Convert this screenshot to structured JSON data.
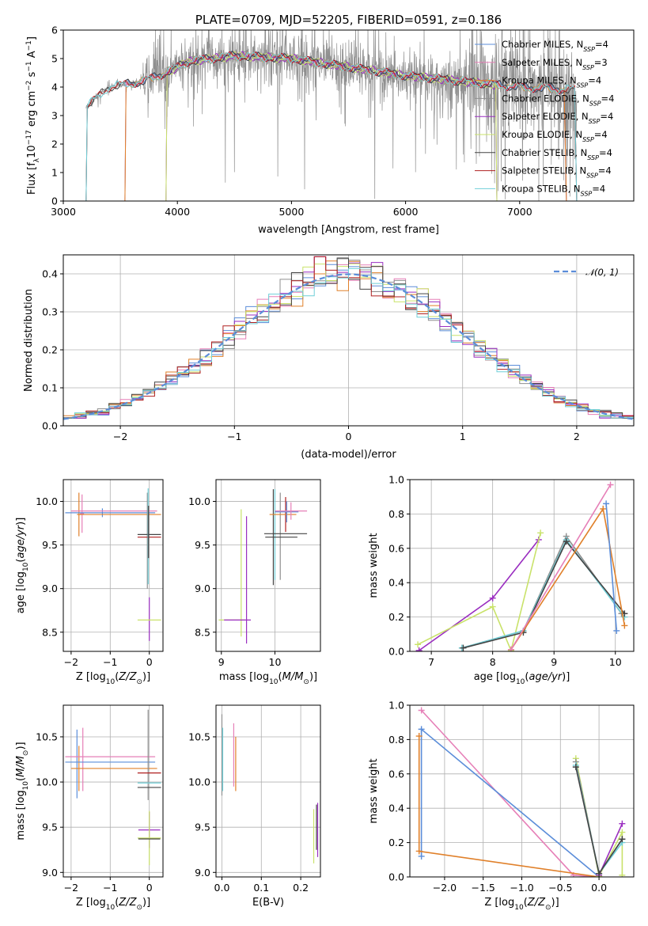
{
  "colors": {
    "Chabrier MILES": "#5b8dd9",
    "Salpeter MILES": "#e67fb7",
    "Kroupa MILES": "#e0802a",
    "Chabrier ELODIE": "#8f8f8f",
    "Salpeter ELODIE": "#9a2ec0",
    "Kroupa ELODIE": "#c9e26a",
    "Chabrier STELIB": "#444444",
    "Salpeter STELIB": "#b02020",
    "Kroupa STELIB": "#6fcfd8",
    "normal": "#5b8dd9"
  },
  "chart_data": [
    {
      "id": "spectrum",
      "type": "line",
      "title": "PLATE=0709, MJD=52205, FIBERID=0591, z=0.186",
      "xlabel": "wavelength [Angstrom, rest frame]",
      "ylabel": "Flux [f_λ 10^−17 erg cm^−2 s^−1 A^−1]",
      "xlim": [
        3000,
        8000
      ],
      "ylim": [
        0,
        6
      ],
      "xticks": [
        "3000",
        "4000",
        "5000",
        "6000",
        "7000"
      ],
      "yticks": [
        "0",
        "1",
        "2",
        "3",
        "4",
        "5",
        "6"
      ],
      "grid": false,
      "legend_position": "top-right",
      "legend": [
        {
          "name": "Chabrier MILES",
          "nssp": "4"
        },
        {
          "name": "Salpeter MILES",
          "nssp": "3"
        },
        {
          "name": "Kroupa MILES",
          "nssp": "4"
        },
        {
          "name": "Chabrier ELODIE",
          "nssp": "4"
        },
        {
          "name": "Salpeter ELODIE",
          "nssp": "4"
        },
        {
          "name": "Kroupa ELODIE",
          "nssp": "4"
        },
        {
          "name": "Chabrier STELIB",
          "nssp": "4"
        },
        {
          "name": "Salpeter STELIB",
          "nssp": "4"
        },
        {
          "name": "Kroupa STELIB",
          "nssp": "4"
        }
      ],
      "data_range": {
        "start": 3200,
        "end": 7500
      },
      "continuum": [
        [
          3200,
          3.3
        ],
        [
          3400,
          4.0
        ],
        [
          3700,
          4.2
        ],
        [
          3900,
          4.5
        ],
        [
          4100,
          4.9
        ],
        [
          4500,
          5.1
        ],
        [
          5000,
          5.0
        ],
        [
          5500,
          4.7
        ],
        [
          6000,
          4.4
        ],
        [
          6500,
          4.2
        ],
        [
          7000,
          4.0
        ],
        [
          7500,
          3.9
        ]
      ],
      "model_ranges": [
        {
          "name": "Chabrier MILES",
          "start": 3540,
          "end": 7410
        },
        {
          "name": "Salpeter MILES",
          "start": 3540,
          "end": 7410
        },
        {
          "name": "Kroupa MILES",
          "start": 3540,
          "end": 7410
        },
        {
          "name": "Chabrier ELODIE",
          "start": 3900,
          "end": 6800
        },
        {
          "name": "Salpeter ELODIE",
          "start": 3900,
          "end": 6800
        },
        {
          "name": "Kroupa ELODIE",
          "start": 3900,
          "end": 6800
        },
        {
          "name": "Chabrier STELIB",
          "start": 3200,
          "end": 7500
        },
        {
          "name": "Salpeter STELIB",
          "start": 3200,
          "end": 7500
        },
        {
          "name": "Kroupa STELIB",
          "start": 3200,
          "end": 7500
        }
      ]
    },
    {
      "id": "residuals",
      "type": "line",
      "title": "",
      "xlabel": "(data-model)/error",
      "ylabel": "Normed distribution",
      "xlim": [
        -2.5,
        2.5
      ],
      "ylim": [
        0,
        0.45
      ],
      "xticks": [
        "−2",
        "−1",
        "0",
        "1",
        "2"
      ],
      "yticks": [
        "0.0",
        "0.1",
        "0.2",
        "0.3",
        "0.4"
      ],
      "grid": true,
      "legend_position": "top-right",
      "normal_label": "𝒩(0, 1)",
      "bin_width": 0.1,
      "bin_start": -2.5
    },
    {
      "id": "age-z",
      "type": "scatter",
      "xlabel": "Z [log10(Z/Z⊙)]",
      "ylabel": "age  [log10(age/yr)]",
      "xlim": [
        -2.2,
        0.35
      ],
      "ylim": [
        8.28,
        10.25
      ],
      "xticks": [
        "−2",
        "−1",
        "0"
      ],
      "yticks": [
        "8.5",
        "9.0",
        "9.5",
        "10.0"
      ],
      "grid": true,
      "points": [
        {
          "series": "Salpeter MILES",
          "x": -1.72,
          "xerr": 0.05,
          "y": 9.86,
          "yerr": 0.22
        },
        {
          "series": "Kroupa MILES",
          "x": -1.8,
          "xerr": 0.05,
          "y": 9.85,
          "yerr": 0.25
        },
        {
          "series": "Chabrier MILES",
          "x": -1.2,
          "xerr": 0.0,
          "y": 9.87,
          "yerr": 0.05
        },
        {
          "series": "Chabrier MILES",
          "x": -1.0,
          "xerr": 1.15,
          "y": 9.87,
          "yerr": 0.0
        },
        {
          "series": "Salpeter MILES",
          "x": -0.9,
          "xerr": 1.1,
          "y": 9.89,
          "yerr": 0.0
        },
        {
          "series": "Kroupa MILES",
          "x": -0.75,
          "xerr": 1.05,
          "y": 9.85,
          "yerr": 0.0
        },
        {
          "series": "Chabrier ELODIE",
          "x": -0.05,
          "xerr": 0.0,
          "y": 9.55,
          "yerr": 0.55
        },
        {
          "series": "Salpeter ELODIE",
          "x": 0.0,
          "xerr": 0.0,
          "y": 8.65,
          "yerr": 0.25
        },
        {
          "series": "Chabrier STELIB",
          "x": 0.0,
          "xerr": 0.3,
          "y": 9.62,
          "yerr": 0.0
        },
        {
          "series": "Salpeter STELIB",
          "x": 0.0,
          "xerr": 0.3,
          "y": 9.59,
          "yerr": 0.0
        },
        {
          "series": "Kroupa STELIB",
          "x": -0.03,
          "xerr": 0.0,
          "y": 9.6,
          "yerr": 0.55
        },
        {
          "series": "Kroupa ELODIE",
          "x": 0.0,
          "xerr": 0.3,
          "y": 8.64,
          "yerr": 0.0
        },
        {
          "series": "Chabrier STELIB",
          "x": -0.02,
          "xerr": 0.0,
          "y": 9.65,
          "yerr": 0.3
        }
      ]
    },
    {
      "id": "age-mass",
      "type": "scatter",
      "xlabel": "mass [log10(M/M⊙)]",
      "ylabel": "",
      "xlim": [
        8.9,
        10.85
      ],
      "ylim": [
        8.28,
        10.25
      ],
      "xticks": [
        "9",
        "10"
      ],
      "yticks": [
        "8.5",
        "9.0",
        "9.5",
        "10.0"
      ],
      "grid": true,
      "points": [
        {
          "series": "Kroupa ELODIE",
          "x": 9.37,
          "xerr": 0.0,
          "y": 9.18,
          "yerr": 0.73
        },
        {
          "series": "Salpeter ELODIE",
          "x": 9.47,
          "xerr": 0.0,
          "y": 9.1,
          "yerr": 0.73
        },
        {
          "series": "Kroupa ELODIE",
          "x": 9.2,
          "xerr": 0.25,
          "y": 8.64,
          "yerr": 0.0
        },
        {
          "series": "Salpeter ELODIE",
          "x": 9.3,
          "xerr": 0.25,
          "y": 8.64,
          "yerr": 0.0
        },
        {
          "series": "Chabrier STELIB",
          "x": 9.97,
          "xerr": 0.0,
          "y": 9.59,
          "yerr": 0.55
        },
        {
          "series": "Kroupa STELIB",
          "x": 10.0,
          "xerr": 0.0,
          "y": 9.62,
          "yerr": 0.52
        },
        {
          "series": "Chabrier ELODIE",
          "x": 10.1,
          "xerr": 0.0,
          "y": 9.6,
          "yerr": 0.5
        },
        {
          "series": "Salpeter STELIB",
          "x": 10.2,
          "xerr": 0.0,
          "y": 9.85,
          "yerr": 0.2
        },
        {
          "series": "Kroupa MILES",
          "x": 10.15,
          "xerr": 0.25,
          "y": 9.85,
          "yerr": 0.0
        },
        {
          "series": "Chabrier MILES",
          "x": 10.22,
          "xerr": 0.22,
          "y": 9.88,
          "yerr": 0.12
        },
        {
          "series": "Salpeter MILES",
          "x": 10.3,
          "xerr": 0.3,
          "y": 9.89,
          "yerr": 0.1
        },
        {
          "series": "Chabrier STELIB",
          "x": 10.2,
          "xerr": 0.4,
          "y": 9.63,
          "yerr": 0.0
        },
        {
          "series": "Chabrier STELIB",
          "x": 10.12,
          "xerr": 0.3,
          "y": 9.59,
          "yerr": 0.0
        }
      ]
    },
    {
      "id": "weight-age",
      "type": "line",
      "xlabel": "age  [log10(age/yr)]",
      "ylabel": "mass weight",
      "xlim": [
        6.65,
        10.3
      ],
      "ylim": [
        0,
        1
      ],
      "xticks": [
        "7",
        "8",
        "9",
        "10"
      ],
      "yticks": [
        "0.0",
        "0.2",
        "0.4",
        "0.6",
        "0.8",
        "1.0"
      ],
      "grid": true,
      "series": [
        {
          "name": "Salpeter ELODIE",
          "x": [
            6.8,
            8.0,
            8.75
          ],
          "y": [
            0.005,
            0.31,
            0.65
          ]
        },
        {
          "name": "Kroupa ELODIE",
          "x": [
            6.78,
            8.0,
            8.3,
            8.78
          ],
          "y": [
            0.04,
            0.26,
            0.005,
            0.69
          ]
        },
        {
          "name": "Chabrier ELODIE",
          "x": [
            7.5,
            8.5,
            9.2,
            10.1
          ],
          "y": [
            0.02,
            0.12,
            0.67,
            0.22
          ]
        },
        {
          "name": "Kroupa STELIB",
          "x": [
            7.5,
            8.5,
            9.2,
            10.15
          ],
          "y": [
            0.02,
            0.12,
            0.65,
            0.2
          ]
        },
        {
          "name": "Chabrier STELIB",
          "x": [
            7.52,
            8.5,
            9.2,
            10.15
          ],
          "y": [
            0.02,
            0.11,
            0.64,
            0.22
          ]
        },
        {
          "name": "Kroupa MILES",
          "x": [
            8.3,
            9.8,
            10.15
          ],
          "y": [
            0.01,
            0.83,
            0.15
          ]
        },
        {
          "name": "Salpeter MILES",
          "x": [
            8.3,
            9.92
          ],
          "y": [
            0.01,
            0.97
          ]
        },
        {
          "name": "Chabrier MILES",
          "x": [
            9.85,
            10.02
          ],
          "y": [
            0.86,
            0.12
          ]
        }
      ]
    },
    {
      "id": "mass-z",
      "type": "scatter",
      "xlabel": "Z [log10(Z/Z⊙)]",
      "ylabel": "mass [log10(M/M⊙)]",
      "xlim": [
        -2.2,
        0.35
      ],
      "ylim": [
        8.95,
        10.85
      ],
      "xticks": [
        "−2",
        "−1",
        "0"
      ],
      "yticks": [
        "9.0",
        "9.5",
        "10.0",
        "10.5"
      ],
      "grid": true,
      "points": [
        {
          "series": "Chabrier MILES",
          "x": -1.85,
          "xerr": 0.0,
          "y": 10.2,
          "yerr": 0.38
        },
        {
          "series": "Salpeter MILES",
          "x": -1.7,
          "xerr": 0.0,
          "y": 10.25,
          "yerr": 0.35
        },
        {
          "series": "Kroupa MILES",
          "x": -1.8,
          "xerr": 0.0,
          "y": 10.15,
          "yerr": 0.25
        },
        {
          "series": "Salpeter MILES",
          "x": -1.0,
          "xerr": 1.15,
          "y": 10.28,
          "yerr": 0.0
        },
        {
          "series": "Chabrier MILES",
          "x": -1.0,
          "xerr": 1.15,
          "y": 10.22,
          "yerr": 0.0
        },
        {
          "series": "Kroupa MILES",
          "x": -0.9,
          "xerr": 1.1,
          "y": 10.15,
          "yerr": 0.0
        },
        {
          "series": "Chabrier ELODIE",
          "x": -0.03,
          "xerr": 0.0,
          "y": 10.3,
          "yerr": 0.5
        },
        {
          "series": "Kroupa STELIB",
          "x": 0.0,
          "xerr": 0.3,
          "y": 9.99,
          "yerr": 0.0
        },
        {
          "series": "Chabrier STELIB",
          "x": 0.0,
          "xerr": 0.3,
          "y": 9.94,
          "yerr": 0.0
        },
        {
          "series": "Salpeter STELIB",
          "x": 0.0,
          "xerr": 0.3,
          "y": 10.1,
          "yerr": 0.0
        },
        {
          "series": "Salpeter ELODIE",
          "x": 0.0,
          "xerr": 0.28,
          "y": 9.47,
          "yerr": 0.2
        },
        {
          "series": "Kroupa ELODIE",
          "x": 0.0,
          "xerr": 0.3,
          "y": 9.38,
          "yerr": 0.3
        },
        {
          "series": "Chabrier STELIB",
          "x": 0.0,
          "xerr": 0.28,
          "y": 9.37,
          "yerr": 0.0
        }
      ]
    },
    {
      "id": "mass-ebv",
      "type": "scatter",
      "xlabel": "E(B-V)",
      "ylabel": "",
      "xlim": [
        -0.015,
        0.25
      ],
      "ylim": [
        8.95,
        10.85
      ],
      "xticks": [
        "0.0",
        "0.1",
        "0.2"
      ],
      "yticks": [
        "9.0",
        "9.5",
        "10.0",
        "10.5"
      ],
      "grid": true,
      "points": [
        {
          "series": "Chabrier ELODIE",
          "x": 0.0,
          "yerr": 0.45,
          "y": 10.3
        },
        {
          "series": "Kroupa STELIB",
          "x": 0.002,
          "yerr": 0.35,
          "y": 10.25
        },
        {
          "series": "Salpeter MILES",
          "x": 0.03,
          "yerr": 0.35,
          "y": 10.3
        },
        {
          "series": "Kroupa MILES",
          "x": 0.035,
          "yerr": 0.3,
          "y": 10.2
        },
        {
          "series": "Kroupa ELODIE",
          "x": 0.233,
          "yerr": 0.3,
          "y": 9.4
        },
        {
          "series": "Salpeter ELODIE",
          "x": 0.243,
          "yerr": 0.3,
          "y": 9.47
        },
        {
          "series": "Chabrier STELIB",
          "x": 0.24,
          "yerr": 0.25,
          "y": 9.5
        }
      ]
    },
    {
      "id": "weight-z",
      "type": "line",
      "xlabel": "Z [log10(Z/Z⊙)]",
      "ylabel": "mass weight",
      "xlim": [
        -2.45,
        0.45
      ],
      "ylim": [
        0,
        1
      ],
      "xticks": [
        "−2.0",
        "−1.5",
        "−1.0",
        "−0.5",
        "0.0"
      ],
      "yticks": [
        "0.0",
        "0.2",
        "0.4",
        "0.6",
        "0.8",
        "1.0"
      ],
      "grid": true,
      "series": [
        {
          "name": "Salpeter MILES",
          "x": [
            -2.3,
            -0.33,
            0.0
          ],
          "y": [
            0.97,
            0.01,
            0.0
          ]
        },
        {
          "name": "Chabrier MILES",
          "x": [
            -2.3,
            -2.3,
            0.0,
            0.0
          ],
          "y": [
            0.12,
            0.86,
            0.0,
            0.0
          ]
        },
        {
          "name": "Kroupa MILES",
          "x": [
            -2.33,
            -2.33,
            0.0
          ],
          "y": [
            0.82,
            0.15,
            0.0
          ]
        },
        {
          "name": "Kroupa ELODIE",
          "x": [
            -0.3,
            0.0,
            0.3,
            0.3
          ],
          "y": [
            0.69,
            0.005,
            0.26,
            0.01
          ]
        },
        {
          "name": "Chabrier ELODIE",
          "x": [
            -0.3,
            0.0,
            0.3
          ],
          "y": [
            0.67,
            0.02,
            0.22
          ]
        },
        {
          "name": "Kroupa STELIB",
          "x": [
            -0.3,
            0.0,
            0.3
          ],
          "y": [
            0.65,
            0.02,
            0.2
          ]
        },
        {
          "name": "Salpeter ELODIE",
          "x": [
            0.0,
            0.3
          ],
          "y": [
            0.01,
            0.31
          ]
        },
        {
          "name": "Chabrier STELIB",
          "x": [
            -0.3,
            0.0,
            0.3
          ],
          "y": [
            0.64,
            0.02,
            0.22
          ]
        }
      ]
    }
  ]
}
